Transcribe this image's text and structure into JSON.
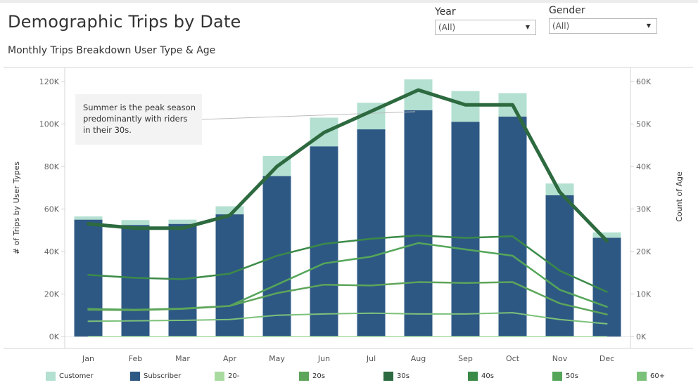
{
  "header": {
    "title": "Demographic Trips by Date",
    "subtitle": "Monthly Trips Breakdown User Type & Age"
  },
  "filters": [
    {
      "label": "Year",
      "value": "(All)"
    },
    {
      "label": "Gender",
      "value": "(All)"
    }
  ],
  "annotation": [
    "Summer is the peak season",
    "predominantly with riders",
    "in their 30s."
  ],
  "colors": {
    "customer": "#b3e0d1",
    "subscriber": "#2e5884",
    "age_20_minus": "#a9dba0",
    "age_20s": "#5da55a",
    "age_30s": "#2d6a3f",
    "age_40s": "#3b8a48",
    "age_50s": "#55a65a",
    "age_60_plus": "#7cc17a"
  },
  "chart_data": {
    "type": "bar",
    "categories": [
      "Jan",
      "Feb",
      "Mar",
      "Apr",
      "May",
      "Jun",
      "Jul",
      "Aug",
      "Sep",
      "Oct",
      "Nov",
      "Dec"
    ],
    "ylabel": "# of Trips by User Types",
    "y2label": "Count of Age",
    "ylim": [
      0,
      120000
    ],
    "y2lim": [
      0,
      60000
    ],
    "y_ticks": [
      "0K",
      "20K",
      "40K",
      "60K",
      "80K",
      "100K",
      "120K"
    ],
    "y2_ticks": [
      "0K",
      "10K",
      "20K",
      "30K",
      "40K",
      "50K",
      "60K"
    ],
    "bar_series": [
      {
        "name": "Subscriber",
        "values": [
          55000,
          52500,
          53000,
          57500,
          75500,
          89500,
          97500,
          106500,
          101000,
          103500,
          66500,
          46500
        ]
      },
      {
        "name": "Customer",
        "values": [
          1500,
          2300,
          2000,
          3800,
          9500,
          13500,
          12500,
          14500,
          14500,
          11000,
          5500,
          2500
        ]
      }
    ],
    "line_series": [
      {
        "name": "30s",
        "values": [
          26500,
          25500,
          25500,
          28500,
          40000,
          48000,
          53000,
          58000,
          54500,
          54500,
          34000,
          22500
        ]
      },
      {
        "name": "40s",
        "values": [
          14500,
          13800,
          13500,
          14800,
          19000,
          21800,
          23000,
          23800,
          23200,
          23600,
          15500,
          10500
        ]
      },
      {
        "name": "50s",
        "values": [
          6500,
          6300,
          6600,
          7200,
          12200,
          17200,
          18800,
          22000,
          20500,
          19000,
          11000,
          7000
        ]
      },
      {
        "name": "20s",
        "values": [
          6300,
          6200,
          6500,
          7200,
          10200,
          12200,
          12000,
          12800,
          12600,
          12800,
          7800,
          5200
        ]
      },
      {
        "name": "60+",
        "values": [
          3600,
          3700,
          3800,
          4000,
          5000,
          5300,
          5500,
          5300,
          5300,
          5600,
          4000,
          3000
        ]
      },
      {
        "name": "20-",
        "values": [
          0,
          0,
          0,
          0,
          0,
          0,
          0,
          0,
          0,
          0,
          0,
          0
        ]
      }
    ],
    "legend": [
      "Customer",
      "Subscriber",
      "20-",
      "20s",
      "30s",
      "40s",
      "50s",
      "60+"
    ],
    "legend_placement": "bottom",
    "grid": false
  }
}
